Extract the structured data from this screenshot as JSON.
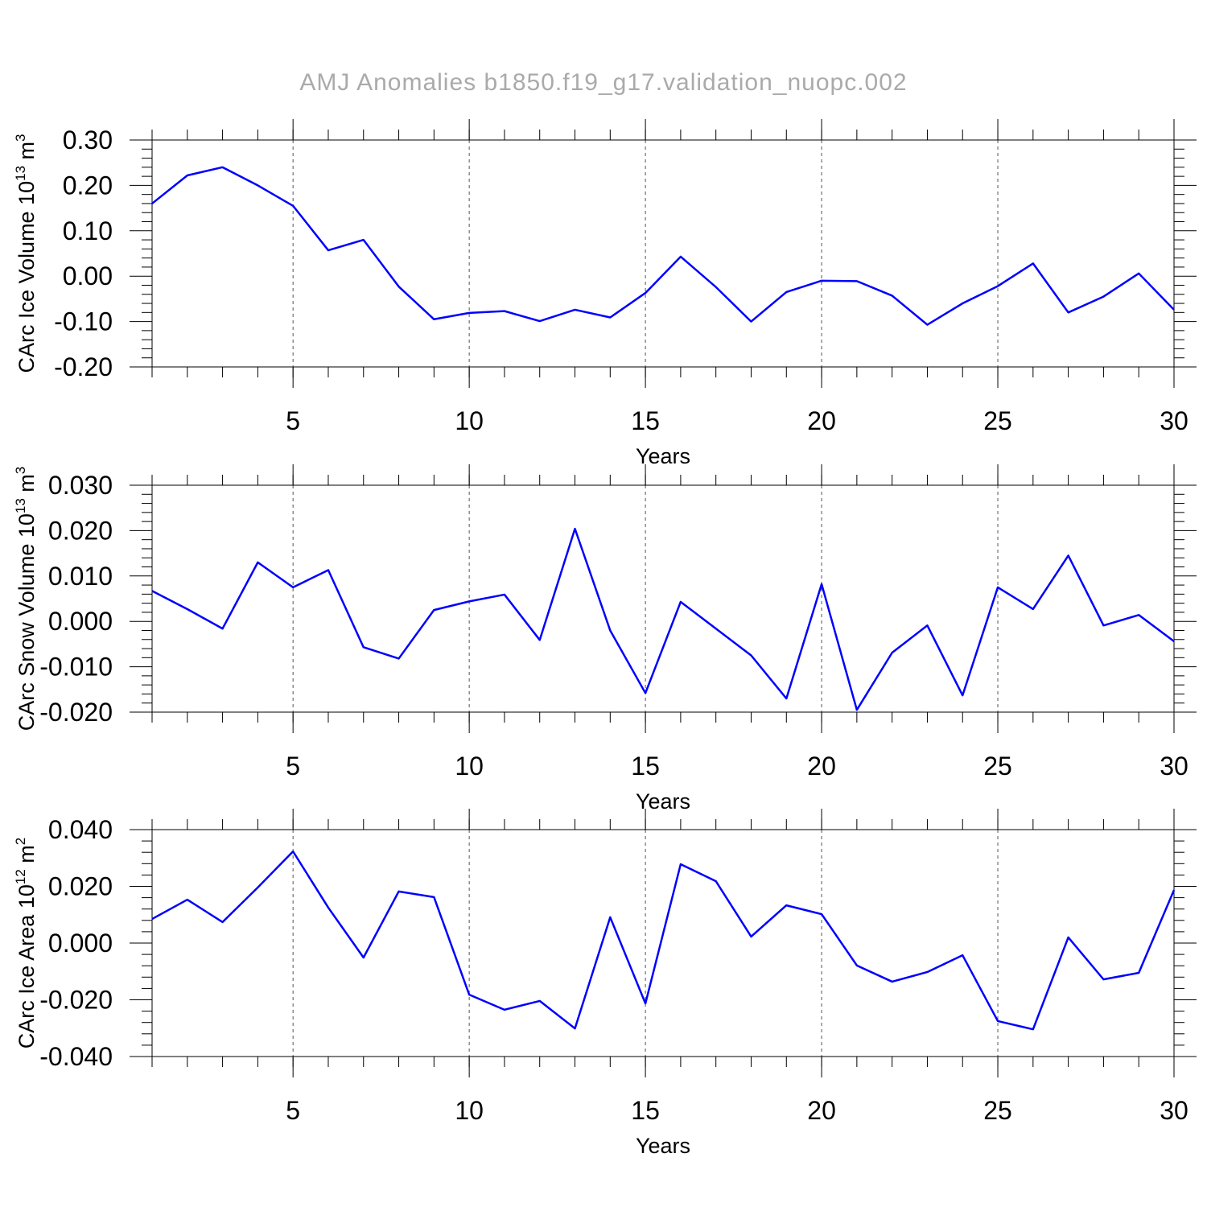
{
  "title": "AMJ Anomalies b1850.f19_g17.validation_nuopc.002",
  "chart_data": [
    {
      "type": "line",
      "xlabel": "Years",
      "ylabel": [
        "CArc Ice Volume 10",
        "13",
        " m",
        "3"
      ],
      "x": [
        1,
        2,
        3,
        4,
        5,
        6,
        7,
        8,
        9,
        10,
        11,
        12,
        13,
        14,
        15,
        16,
        17,
        18,
        19,
        20,
        21,
        22,
        23,
        24,
        25,
        26,
        27,
        28,
        29,
        30
      ],
      "values": [
        0.16,
        0.222,
        0.24,
        0.2,
        0.155,
        0.057,
        0.08,
        -0.023,
        -0.095,
        -0.081,
        -0.077,
        -0.099,
        -0.074,
        -0.091,
        -0.037,
        0.043,
        -0.024,
        -0.1,
        -0.035,
        -0.01,
        -0.011,
        -0.043,
        -0.107,
        -0.06,
        -0.022,
        0.028,
        -0.08,
        -0.045,
        0.006,
        -0.074
      ],
      "color": "#0000ff",
      "xlim": [
        1,
        30
      ],
      "xticks": [
        5,
        10,
        15,
        20,
        25,
        30
      ],
      "ylim": [
        -0.2,
        0.3
      ],
      "yticks": [
        {
          "value": -0.2,
          "label": "-0.20"
        },
        {
          "value": -0.1,
          "label": "-0.10"
        },
        {
          "value": 0,
          "label": "0.00"
        },
        {
          "value": 0.1,
          "label": "0.10"
        },
        {
          "value": 0.2,
          "label": "0.20"
        },
        {
          "value": 0.3,
          "label": "0.30"
        }
      ],
      "grid": true
    },
    {
      "type": "line",
      "xlabel": "Years",
      "ylabel": [
        "CArc Snow Volume 10",
        "13",
        " m",
        "3"
      ],
      "x": [
        1,
        2,
        3,
        4,
        5,
        6,
        7,
        8,
        9,
        10,
        11,
        12,
        13,
        14,
        15,
        16,
        17,
        18,
        19,
        20,
        21,
        22,
        23,
        24,
        25,
        26,
        27,
        28,
        29,
        30
      ],
      "values": [
        0.0067,
        0.0027,
        -0.0016,
        0.013,
        0.0075,
        0.0113,
        -0.0057,
        -0.0082,
        0.0025,
        0.0044,
        0.0059,
        -0.0041,
        0.0204,
        -0.002,
        -0.0158,
        0.0043,
        -0.0016,
        -0.0075,
        -0.017,
        0.0082,
        -0.0195,
        -0.0069,
        -0.0009,
        -0.0163,
        0.0075,
        0.0027,
        0.0145,
        -0.0009,
        0.0014,
        -0.0044
      ],
      "color": "#0000ff",
      "xlim": [
        1,
        30
      ],
      "xticks": [
        5,
        10,
        15,
        20,
        25,
        30
      ],
      "ylim": [
        -0.02,
        0.03
      ],
      "yticks": [
        {
          "value": -0.02,
          "label": "-0.020"
        },
        {
          "value": -0.01,
          "label": "-0.010"
        },
        {
          "value": 0,
          "label": "0.000"
        },
        {
          "value": 0.01,
          "label": "0.010"
        },
        {
          "value": 0.02,
          "label": "0.020"
        },
        {
          "value": 0.03,
          "label": "0.030"
        }
      ],
      "grid": true
    },
    {
      "type": "line",
      "xlabel": "Years",
      "ylabel": [
        "CArc Ice Area 10",
        "12",
        " m",
        "2"
      ],
      "x": [
        1,
        2,
        3,
        4,
        5,
        6,
        7,
        8,
        9,
        10,
        11,
        12,
        13,
        14,
        15,
        16,
        17,
        18,
        19,
        20,
        21,
        22,
        23,
        24,
        25,
        26,
        27,
        28,
        29,
        30
      ],
      "values": [
        0.0085,
        0.0153,
        0.0074,
        0.0196,
        0.0323,
        0.0125,
        -0.0051,
        0.0182,
        0.0162,
        -0.0182,
        -0.0235,
        -0.0204,
        -0.0301,
        0.0091,
        -0.0213,
        0.0278,
        0.0218,
        0.0023,
        0.0133,
        0.0102,
        -0.0079,
        -0.0136,
        -0.0102,
        -0.0043,
        -0.0275,
        -0.0304,
        0.002,
        -0.0128,
        -0.0105,
        0.0187
      ],
      "color": "#0000ff",
      "xlim": [
        1,
        30
      ],
      "xticks": [
        5,
        10,
        15,
        20,
        25,
        30
      ],
      "ylim": [
        -0.04,
        0.04
      ],
      "yticks": [
        {
          "value": -0.04,
          "label": "-0.040"
        },
        {
          "value": -0.02,
          "label": "-0.020"
        },
        {
          "value": 0,
          "label": "0.000"
        },
        {
          "value": 0.02,
          "label": "0.020"
        },
        {
          "value": 0.04,
          "label": "0.040"
        }
      ],
      "grid": true
    }
  ]
}
